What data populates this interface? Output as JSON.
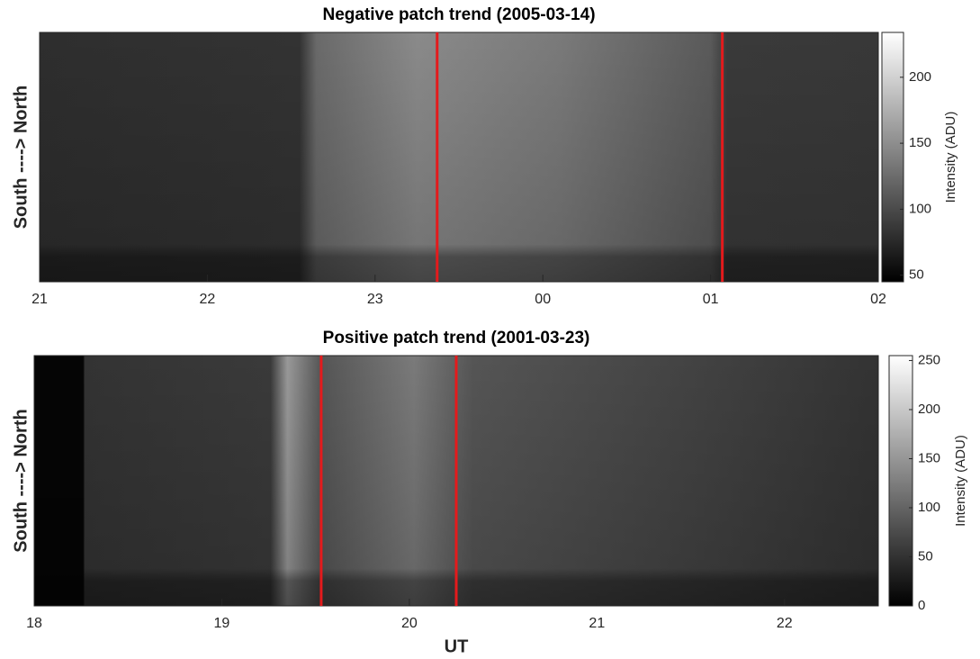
{
  "chart_data": [
    {
      "type": "keogram",
      "title": "Negative patch trend (2005-03-14)",
      "ylabel": "South  ---->  North",
      "xlim": [
        21,
        26
      ],
      "xticks": [
        21,
        22,
        23,
        {
          "value": 24,
          "label": "00"
        },
        {
          "value": 25,
          "label": "01"
        },
        {
          "value": 26,
          "label": "02"
        }
      ],
      "vlines": [
        23.37,
        25.07
      ],
      "vline_color": "#e41a1c",
      "colorbar": {
        "label": "Intensity (ADU)",
        "lim": [
          45,
          234
        ],
        "ticks": [
          50,
          100,
          150,
          200
        ]
      }
    },
    {
      "type": "keogram",
      "title": "Positive patch trend (2001-03-23)",
      "ylabel": "South  ---->  North",
      "xlabel": "UT",
      "xlim": [
        18,
        22.5
      ],
      "xticks": [
        18,
        19,
        20,
        21,
        22
      ],
      "vlines": [
        19.53,
        20.25
      ],
      "vline_color": "#e41a1c",
      "colorbar": {
        "label": "Intensity (ADU)",
        "lim": [
          0,
          255
        ],
        "ticks": [
          0,
          50,
          100,
          150,
          200,
          250
        ]
      }
    }
  ]
}
